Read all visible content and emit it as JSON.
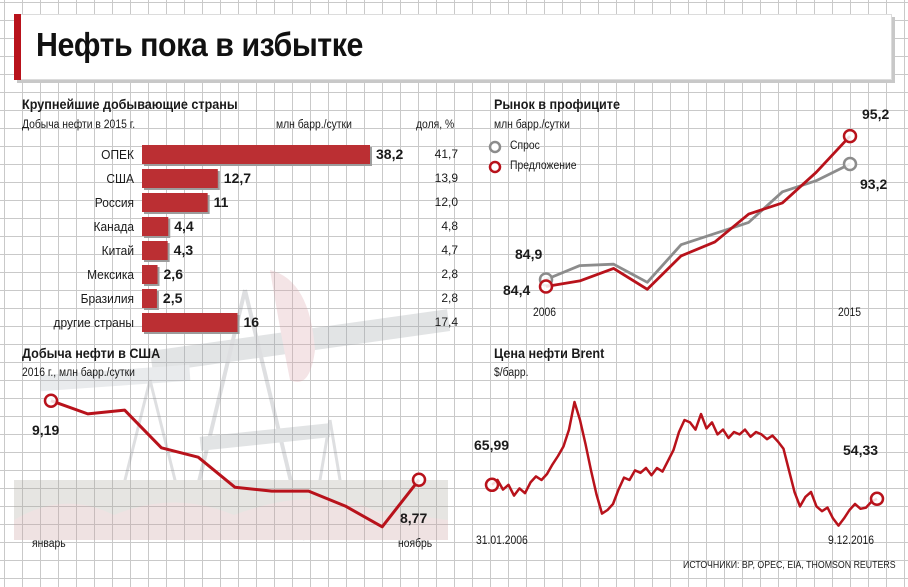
{
  "title": "Нефть пока в избытке",
  "source": "ИСТОЧНИКИ: BP, OPEC, EIA, THOMSON REUTERS",
  "colors": {
    "accent": "#b8121b",
    "supply": "#b8121b",
    "demand": "#8c8c8c",
    "bar": "#bb2f33"
  },
  "chart_data": [
    {
      "type": "bar",
      "title": "Крупнейшие добывающие страны",
      "subtitle": "Добыча нефти в 2015 г.",
      "unit_label": "млн барр./сутки",
      "share_label": "доля, %",
      "categories": [
        "ОПЕК",
        "США",
        "Россия",
        "Канада",
        "Китай",
        "Мексика",
        "Бразилия",
        "другие страны"
      ],
      "values": [
        38.2,
        12.7,
        11,
        4.4,
        4.3,
        2.6,
        2.5,
        16
      ],
      "value_labels": [
        "38,2",
        "12,7",
        "11",
        "4,4",
        "4,3",
        "2,6",
        "2,5",
        "16"
      ],
      "shares": [
        "41,7",
        "13,9",
        "12,0",
        "4,8",
        "4,7",
        "2,8",
        "2,8",
        "17,4"
      ]
    },
    {
      "type": "line",
      "title": "Рынок в профиците",
      "ylabel": "млн барр./сутки",
      "x": [
        2006,
        2007,
        2008,
        2009,
        2010,
        2011,
        2012,
        2013,
        2014,
        2015
      ],
      "x_tick_labels": [
        "2006",
        "2015"
      ],
      "series": [
        {
          "name": "Спрос",
          "values": [
            84.9,
            85.9,
            86.0,
            84.7,
            87.4,
            88.2,
            89.0,
            91.2,
            92.0,
            93.2
          ]
        },
        {
          "name": "Предложение",
          "values": [
            84.4,
            84.8,
            85.7,
            84.2,
            86.6,
            87.6,
            89.6,
            90.4,
            92.6,
            95.2
          ]
        }
      ],
      "start_labels": [
        "84,9",
        "84,4"
      ],
      "end_labels": [
        "93,2",
        "95,2"
      ],
      "ylim": [
        83,
        96.5
      ]
    },
    {
      "type": "line",
      "title": "Добыча нефти в США",
      "ylabel": "2016 г., млн барр./сутки",
      "x_tick_labels": [
        "январь",
        "ноябрь"
      ],
      "series": [
        {
          "values": [
            9.19,
            9.12,
            9.14,
            8.94,
            8.89,
            8.73,
            8.71,
            8.71,
            8.63,
            8.52,
            8.77
          ]
        }
      ],
      "start_label": "9,19",
      "end_label": "8,77",
      "ylim": [
        8.45,
        9.3
      ]
    },
    {
      "type": "line",
      "title": "Цена нефти Brent",
      "ylabel": "$/барр.",
      "x_tick_labels": [
        "31.01.2006",
        "9.12.2016"
      ],
      "series": [
        {
          "values": [
            65.99,
            70,
            62,
            66,
            57,
            63,
            59,
            68,
            73,
            70,
            75,
            83,
            90,
            98,
            112,
            135,
            120,
            100,
            78,
            58,
            42,
            45,
            50,
            62,
            72,
            70,
            78,
            76,
            80,
            74,
            80,
            77,
            86,
            95,
            110,
            120,
            118,
            112,
            125,
            113,
            118,
            108,
            112,
            105,
            110,
            108,
            112,
            106,
            110,
            108,
            104,
            107,
            102,
            96,
            78,
            60,
            48,
            56,
            60,
            48,
            44,
            47,
            38,
            32,
            38,
            45,
            50,
            46,
            47,
            52,
            54.33
          ]
        }
      ],
      "start_label": "65,99",
      "end_label": "54,33",
      "ylim": [
        20,
        145
      ]
    }
  ]
}
